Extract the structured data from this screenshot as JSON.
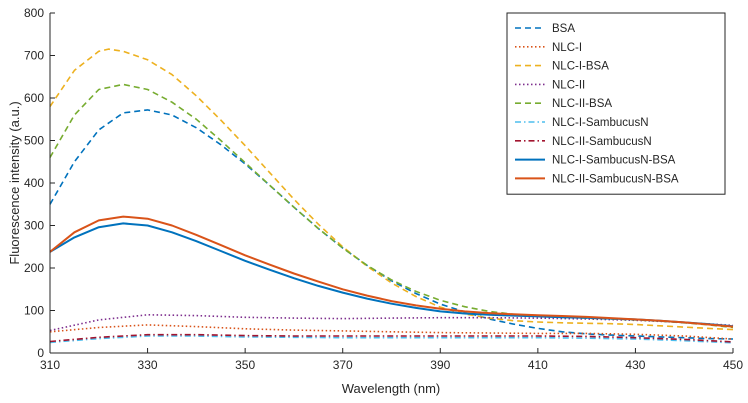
{
  "chart_data": {
    "type": "line",
    "title": "",
    "xlabel": "Wavelength (nm)",
    "ylabel": "Fluorescence intensity (a.u.)",
    "xlim": [
      310,
      450
    ],
    "ylim": [
      0,
      800
    ],
    "x_ticks": [
      "310",
      "330",
      "350",
      "370",
      "390",
      "410",
      "430",
      "450"
    ],
    "y_ticks": [
      "0",
      "100",
      "200",
      "300",
      "400",
      "500",
      "600",
      "700",
      "800"
    ],
    "grid": false,
    "legend_position": "top-right",
    "series": [
      {
        "name": "BSA",
        "color": "#0072BD",
        "style": "dashed",
        "points": [
          [
            310,
            350
          ],
          [
            315,
            450
          ],
          [
            320,
            525
          ],
          [
            325,
            565
          ],
          [
            330,
            572
          ],
          [
            335,
            560
          ],
          [
            340,
            530
          ],
          [
            345,
            490
          ],
          [
            350,
            445
          ],
          [
            355,
            395
          ],
          [
            360,
            343
          ],
          [
            365,
            293
          ],
          [
            370,
            247
          ],
          [
            375,
            206
          ],
          [
            380,
            170
          ],
          [
            385,
            140
          ],
          [
            390,
            115
          ],
          [
            395,
            97
          ],
          [
            400,
            80
          ],
          [
            405,
            68
          ],
          [
            410,
            58
          ],
          [
            415,
            50
          ],
          [
            420,
            45
          ],
          [
            425,
            42
          ],
          [
            430,
            40
          ],
          [
            435,
            38
          ],
          [
            440,
            36
          ],
          [
            445,
            34
          ],
          [
            450,
            33
          ]
        ]
      },
      {
        "name": "NLC-I",
        "color": "#D95319",
        "style": "dotted",
        "points": [
          [
            310,
            50
          ],
          [
            320,
            60
          ],
          [
            330,
            66
          ],
          [
            340,
            62
          ],
          [
            350,
            57
          ],
          [
            360,
            54
          ],
          [
            370,
            52
          ],
          [
            380,
            50
          ],
          [
            390,
            48
          ],
          [
            400,
            47
          ],
          [
            410,
            46
          ],
          [
            420,
            46
          ],
          [
            430,
            44
          ],
          [
            440,
            40
          ],
          [
            450,
            33
          ]
        ]
      },
      {
        "name": "NLC-I-BSA",
        "color": "#EDB120",
        "style": "dashed",
        "points": [
          [
            310,
            580
          ],
          [
            315,
            665
          ],
          [
            320,
            710
          ],
          [
            322,
            715
          ],
          [
            325,
            710
          ],
          [
            330,
            690
          ],
          [
            335,
            655
          ],
          [
            340,
            605
          ],
          [
            345,
            548
          ],
          [
            350,
            488
          ],
          [
            355,
            425
          ],
          [
            360,
            362
          ],
          [
            365,
            303
          ],
          [
            370,
            250
          ],
          [
            375,
            204
          ],
          [
            380,
            165
          ],
          [
            385,
            133
          ],
          [
            390,
            108
          ],
          [
            395,
            92
          ],
          [
            400,
            82
          ],
          [
            405,
            76
          ],
          [
            410,
            73
          ],
          [
            415,
            71
          ],
          [
            420,
            70
          ],
          [
            425,
            69
          ],
          [
            430,
            67
          ],
          [
            435,
            64
          ],
          [
            440,
            61
          ],
          [
            445,
            58
          ],
          [
            450,
            55
          ]
        ]
      },
      {
        "name": "NLC-II",
        "color": "#7E2F8E",
        "style": "dotted",
        "points": [
          [
            310,
            53
          ],
          [
            320,
            78
          ],
          [
            330,
            90
          ],
          [
            340,
            88
          ],
          [
            350,
            84
          ],
          [
            360,
            82
          ],
          [
            370,
            81
          ],
          [
            380,
            82
          ],
          [
            390,
            83
          ],
          [
            400,
            83
          ],
          [
            410,
            82
          ],
          [
            420,
            80
          ],
          [
            430,
            77
          ],
          [
            440,
            72
          ],
          [
            450,
            65
          ]
        ]
      },
      {
        "name": "NLC-II-BSA",
        "color": "#77AC30",
        "style": "dashed",
        "points": [
          [
            310,
            460
          ],
          [
            315,
            560
          ],
          [
            320,
            620
          ],
          [
            325,
            632
          ],
          [
            330,
            620
          ],
          [
            335,
            590
          ],
          [
            340,
            550
          ],
          [
            345,
            500
          ],
          [
            350,
            448
          ],
          [
            355,
            395
          ],
          [
            360,
            343
          ],
          [
            365,
            293
          ],
          [
            370,
            247
          ],
          [
            375,
            206
          ],
          [
            380,
            172
          ],
          [
            385,
            145
          ],
          [
            390,
            124
          ],
          [
            395,
            109
          ],
          [
            400,
            98
          ],
          [
            405,
            91
          ],
          [
            410,
            87
          ],
          [
            415,
            84
          ],
          [
            420,
            82
          ],
          [
            425,
            80
          ],
          [
            430,
            78
          ],
          [
            435,
            75
          ],
          [
            440,
            71
          ],
          [
            445,
            66
          ],
          [
            450,
            60
          ]
        ]
      },
      {
        "name": "NLC-I-SambucusN",
        "color": "#4DBEEE",
        "style": "dashdot",
        "points": [
          [
            310,
            25
          ],
          [
            320,
            34
          ],
          [
            330,
            40
          ],
          [
            340,
            40
          ],
          [
            350,
            38
          ],
          [
            360,
            37
          ],
          [
            370,
            36
          ],
          [
            380,
            36
          ],
          [
            390,
            36
          ],
          [
            400,
            36
          ],
          [
            410,
            36
          ],
          [
            420,
            35
          ],
          [
            430,
            33
          ],
          [
            440,
            29
          ],
          [
            450,
            24
          ]
        ]
      },
      {
        "name": "NLC-II-SambucusN",
        "color": "#A2142F",
        "style": "dashdot",
        "points": [
          [
            310,
            27
          ],
          [
            320,
            37
          ],
          [
            330,
            43
          ],
          [
            340,
            43
          ],
          [
            350,
            41
          ],
          [
            360,
            40
          ],
          [
            370,
            40
          ],
          [
            380,
            40
          ],
          [
            390,
            40
          ],
          [
            400,
            40
          ],
          [
            410,
            40
          ],
          [
            420,
            39
          ],
          [
            430,
            36
          ],
          [
            440,
            32
          ],
          [
            450,
            26
          ]
        ]
      },
      {
        "name": "NLC-I-SambucusN-BSA",
        "color": "#0072BD",
        "style": "solid",
        "points": [
          [
            310,
            238
          ],
          [
            315,
            272
          ],
          [
            320,
            296
          ],
          [
            325,
            305
          ],
          [
            330,
            300
          ],
          [
            335,
            284
          ],
          [
            340,
            263
          ],
          [
            345,
            240
          ],
          [
            350,
            217
          ],
          [
            355,
            196
          ],
          [
            360,
            176
          ],
          [
            365,
            158
          ],
          [
            370,
            142
          ],
          [
            375,
            128
          ],
          [
            380,
            116
          ],
          [
            385,
            106
          ],
          [
            390,
            98
          ],
          [
            395,
            93
          ],
          [
            400,
            90
          ],
          [
            405,
            88
          ],
          [
            410,
            86
          ],
          [
            415,
            84
          ],
          [
            420,
            83
          ],
          [
            425,
            81
          ],
          [
            430,
            79
          ],
          [
            435,
            76
          ],
          [
            440,
            72
          ],
          [
            445,
            68
          ],
          [
            450,
            63
          ]
        ]
      },
      {
        "name": "NLC-II-SambucusN-BSA",
        "color": "#D95319",
        "style": "solid",
        "points": [
          [
            310,
            238
          ],
          [
            315,
            284
          ],
          [
            320,
            312
          ],
          [
            325,
            321
          ],
          [
            330,
            316
          ],
          [
            335,
            300
          ],
          [
            340,
            278
          ],
          [
            345,
            254
          ],
          [
            350,
            230
          ],
          [
            355,
            208
          ],
          [
            360,
            187
          ],
          [
            365,
            168
          ],
          [
            370,
            150
          ],
          [
            375,
            135
          ],
          [
            380,
            122
          ],
          [
            385,
            112
          ],
          [
            390,
            104
          ],
          [
            395,
            98
          ],
          [
            400,
            94
          ],
          [
            405,
            91
          ],
          [
            410,
            89
          ],
          [
            415,
            87
          ],
          [
            420,
            85
          ],
          [
            425,
            82
          ],
          [
            430,
            79
          ],
          [
            435,
            76
          ],
          [
            440,
            72
          ],
          [
            445,
            67
          ],
          [
            450,
            62
          ]
        ]
      }
    ]
  }
}
